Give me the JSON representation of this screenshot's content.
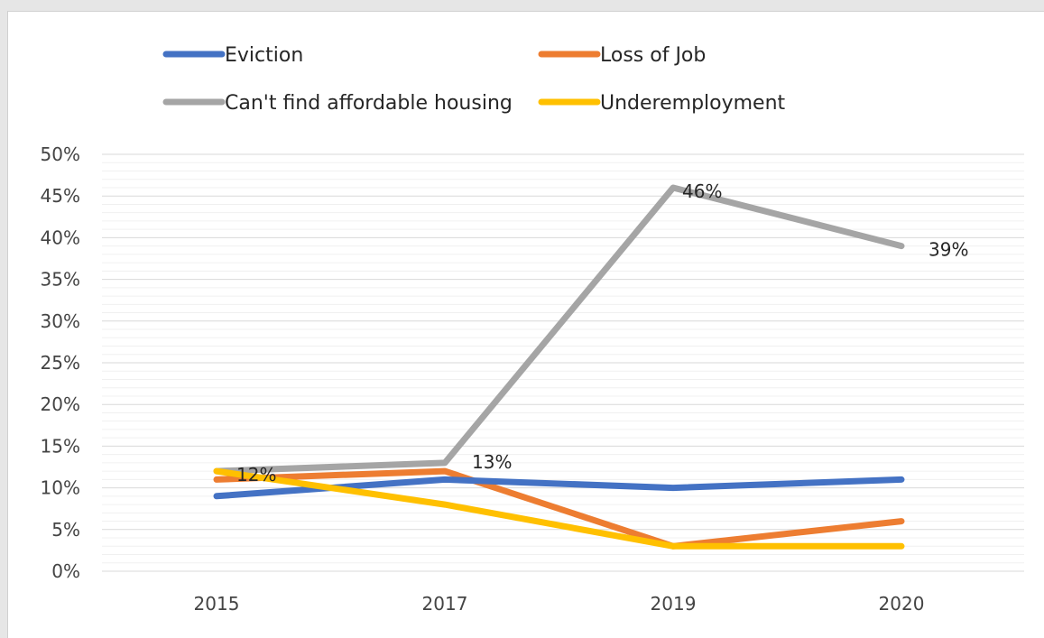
{
  "chart_data": {
    "type": "line",
    "title": "",
    "xlabel": "",
    "ylabel": "",
    "categories": [
      "2015",
      "2017",
      "2019",
      "2020"
    ],
    "ylim": [
      0,
      50
    ],
    "y_ticks": [
      "0%",
      "5%",
      "10%",
      "15%",
      "20%",
      "25%",
      "30%",
      "35%",
      "40%",
      "45%",
      "50%"
    ],
    "grid": true,
    "legend_position": "top",
    "series": [
      {
        "name": "Eviction",
        "color": "#4472C4",
        "values": [
          9,
          11,
          10,
          11
        ]
      },
      {
        "name": "Loss of Job",
        "color": "#ED7D31",
        "values": [
          11,
          12,
          3,
          6
        ]
      },
      {
        "name": "Can't find affordable housing",
        "color": "#A5A5A5",
        "values": [
          12,
          13,
          46,
          39
        ]
      },
      {
        "name": "Underemployment",
        "color": "#FFC000",
        "values": [
          12,
          8,
          3,
          3
        ]
      }
    ],
    "data_labels": [
      {
        "series": "Can't find affordable housing",
        "index": 0,
        "text": "12%"
      },
      {
        "series": "Can't find affordable housing",
        "index": 1,
        "text": "13%"
      },
      {
        "series": "Can't find affordable housing",
        "index": 2,
        "text": "46%"
      },
      {
        "series": "Can't find affordable housing",
        "index": 3,
        "text": "39%"
      }
    ]
  }
}
